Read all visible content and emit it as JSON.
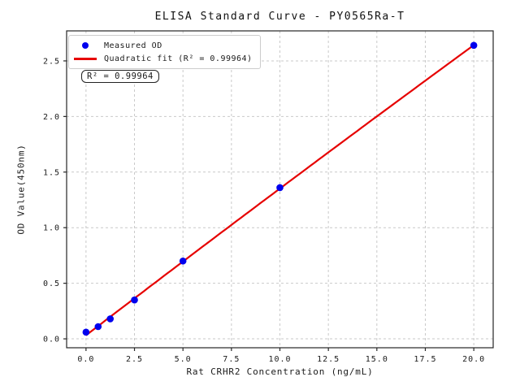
{
  "title": "ELISA Standard Curve - PY0565Ra-T",
  "legend": {
    "items": [
      {
        "label": "Measured OD",
        "marker": "blue-dot"
      },
      {
        "label": "Quadratic fit (R² = 0.99964)",
        "marker": "red-line"
      }
    ]
  },
  "annotation": {
    "text": "R² = 0.99964"
  },
  "colors": {
    "measured": "#0000ee",
    "fit": "#e60000",
    "grid": "#c9c9c9",
    "spine": "#262626",
    "text": "#1a1a1a"
  },
  "chart_data": {
    "type": "scatter",
    "title": "ELISA Standard Curve - PY0565Ra-T",
    "xlabel": "Rat CRHR2 Concentration (ng/mL)",
    "ylabel": "OD Value(450nm)",
    "series": [
      {
        "name": "Measured OD",
        "x": [
          0,
          0.625,
          1.25,
          2.5,
          5,
          10,
          20
        ],
        "y": [
          0.06,
          0.11,
          0.18,
          0.35,
          0.7,
          1.36,
          2.64
        ]
      }
    ],
    "fit": {
      "name": "Quadratic fit",
      "type": "quadratic",
      "r_squared": 0.99964,
      "x_range": [
        0,
        20
      ]
    },
    "xlim": [
      -1,
      21
    ],
    "ylim": [
      -0.08,
      2.77
    ],
    "xticks": [
      0,
      2.5,
      5,
      7.5,
      10,
      12.5,
      15,
      17.5,
      20
    ],
    "xtick_labels": [
      "0.0",
      "2.5",
      "5.0",
      "7.5",
      "10.0",
      "12.5",
      "15.0",
      "17.5",
      "20.0"
    ],
    "yticks": [
      0,
      0.5,
      1.0,
      1.5,
      2.0,
      2.5
    ],
    "ytick_labels": [
      "0.0",
      "0.5",
      "1.0",
      "1.5",
      "2.0",
      "2.5"
    ],
    "grid": true,
    "grid_style": "dashed",
    "legend_position": "upper left"
  }
}
